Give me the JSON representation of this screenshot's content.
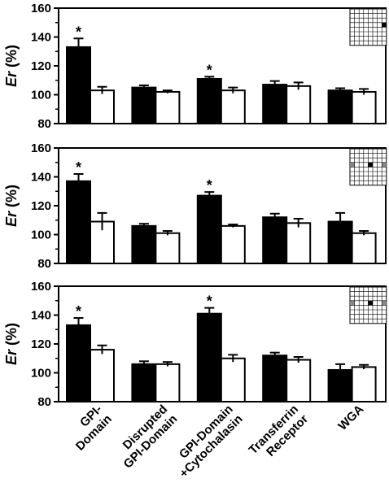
{
  "chart_data": [
    {
      "type": "bar",
      "ylabel_italic": "Er",
      "ylabel_rest": " (%)",
      "ylim": [
        80,
        160
      ],
      "yticks": [
        "80",
        "100",
        "120",
        "140",
        "160"
      ],
      "categories": [
        "GPI-\nDomain",
        "Disrupted\nGPI-Domain",
        "GPI-Domain\n+Cytochalasin",
        "Transferrin\nReceptor",
        "WGA"
      ],
      "series": [
        {
          "fill": "#000000",
          "values": [
            133,
            105,
            111,
            107,
            103
          ],
          "errors": [
            6,
            1.5,
            1.5,
            2.5,
            1.5
          ]
        },
        {
          "fill": "#ffffff",
          "values": [
            103,
            102,
            103,
            106,
            102
          ],
          "errors": [
            2.5,
            1,
            2,
            2.5,
            2
          ]
        }
      ],
      "significance": [
        "*",
        "",
        "*",
        "",
        ""
      ],
      "inset": {
        "center": [
          3,
          7
        ],
        "gray": []
      }
    },
    {
      "type": "bar",
      "ylabel_italic": "Er",
      "ylabel_rest": " (%)",
      "ylim": [
        80,
        160
      ],
      "yticks": [
        "80",
        "100",
        "120",
        "140",
        "160"
      ],
      "categories": [
        "GPI-\nDomain",
        "Disrupted\nGPI-Domain",
        "GPI-Domain\n+Cytochalasin",
        "Transferrin\nReceptor",
        "WGA"
      ],
      "series": [
        {
          "fill": "#000000",
          "values": [
            137,
            106,
            127,
            112,
            109
          ],
          "errors": [
            5,
            1.5,
            2.5,
            2.5,
            6
          ]
        },
        {
          "fill": "#ffffff",
          "values": [
            109,
            101,
            106,
            108,
            101
          ],
          "errors": [
            6,
            1.5,
            1,
            3,
            1.5
          ]
        }
      ],
      "significance": [
        "*",
        "",
        "*",
        "",
        ""
      ],
      "inset": {
        "center": [
          3,
          4
        ],
        "gray": [
          [
            3,
            0
          ],
          [
            3,
            7
          ]
        ]
      }
    },
    {
      "type": "bar",
      "ylabel_italic": "Er",
      "ylabel_rest": " (%)",
      "ylim": [
        80,
        160
      ],
      "yticks": [
        "80",
        "100",
        "120",
        "140",
        "160"
      ],
      "categories": [
        "GPI-\nDomain",
        "Disrupted\nGPI-Domain",
        "GPI-Domain\n+Cytochalasin",
        "Transferrin\nReceptor",
        "WGA"
      ],
      "series": [
        {
          "fill": "#000000",
          "values": [
            133,
            106,
            141,
            112,
            102
          ],
          "errors": [
            5,
            2,
            4,
            2,
            4
          ]
        },
        {
          "fill": "#ffffff",
          "values": [
            116,
            106,
            110,
            109,
            104
          ],
          "errors": [
            3,
            1.5,
            2.5,
            2,
            1.5
          ]
        }
      ],
      "significance": [
        "*",
        "",
        "*",
        "",
        ""
      ],
      "inset": {
        "center": [
          3,
          4
        ],
        "gray": [
          [
            3,
            0
          ],
          [
            3,
            7
          ]
        ]
      }
    }
  ]
}
